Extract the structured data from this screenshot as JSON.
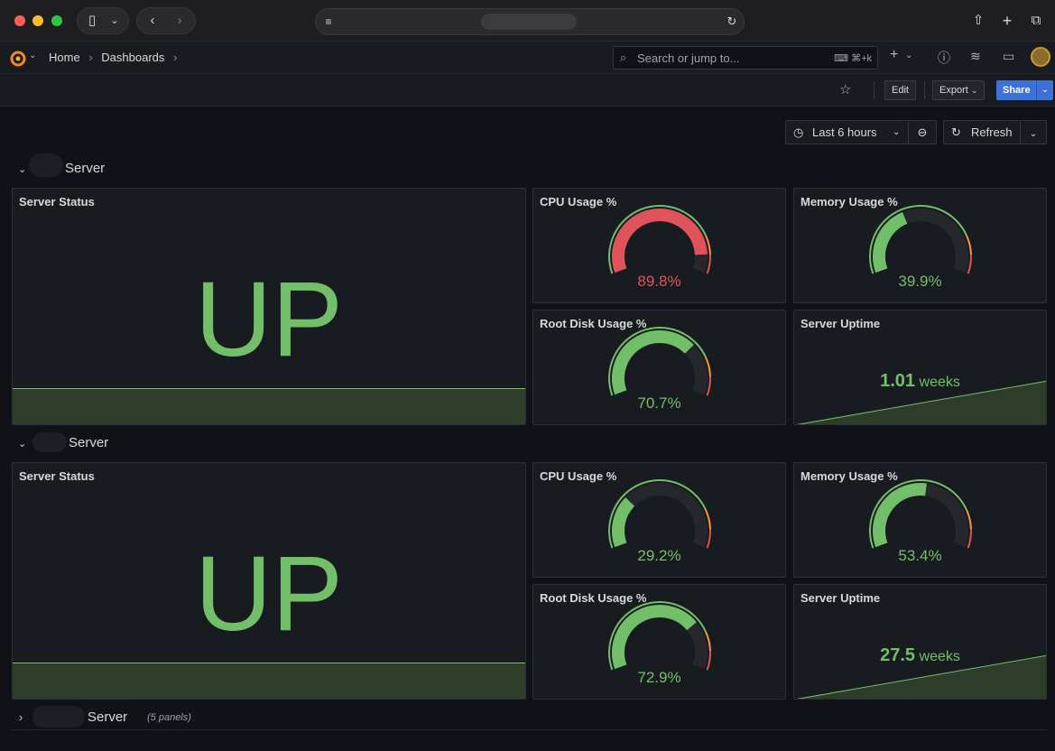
{
  "browser": {
    "tabs_label": "",
    "url": ""
  },
  "nav": {
    "breadcrumbs": [
      "Home",
      "Dashboards"
    ],
    "search_placeholder": "Search or jump to...",
    "search_shortcut": "⌘+k"
  },
  "toolbar": {
    "edit": "Edit",
    "export": "Export",
    "share": "Share"
  },
  "time": {
    "range": "Last 6 hours",
    "refresh": "Refresh"
  },
  "rows": [
    {
      "title": "Server",
      "status": {
        "title": "Server Status",
        "value": "UP"
      },
      "cpu": {
        "title": "CPU Usage %",
        "value": "89.8%",
        "pct": 89.8,
        "color": "#e0535a"
      },
      "memory": {
        "title": "Memory Usage %",
        "value": "39.9%",
        "pct": 39.9,
        "color": "#73bf69"
      },
      "disk": {
        "title": "Root Disk Usage %",
        "value": "70.7%",
        "pct": 70.7,
        "color": "#73bf69"
      },
      "uptime": {
        "title": "Server Uptime",
        "number": "1.01",
        "unit": "weeks"
      }
    },
    {
      "title": "Server",
      "status": {
        "title": "Server Status",
        "value": "UP"
      },
      "cpu": {
        "title": "CPU Usage %",
        "value": "29.2%",
        "pct": 29.2,
        "color": "#73bf69"
      },
      "memory": {
        "title": "Memory Usage %",
        "value": "53.4%",
        "pct": 53.4,
        "color": "#73bf69"
      },
      "disk": {
        "title": "Root Disk Usage %",
        "value": "72.9%",
        "pct": 72.9,
        "color": "#73bf69"
      },
      "uptime": {
        "title": "Server Uptime",
        "number": "27.5",
        "unit": "weeks"
      }
    }
  ],
  "collapsed_row": {
    "title": "Server",
    "count": "(5 panels)"
  },
  "colors": {
    "green": "#73bf69",
    "red": "#e0535a",
    "orange": "#ff9830"
  }
}
